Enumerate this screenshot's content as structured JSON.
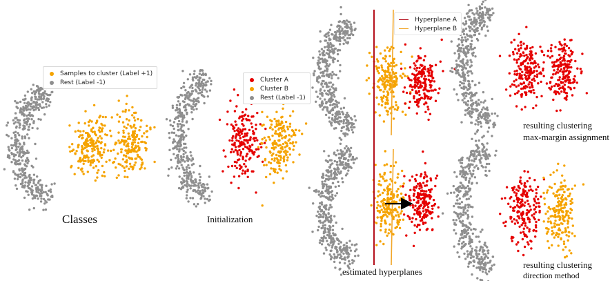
{
  "colors": {
    "rest": "#8f8f8f",
    "cluster_target": "#f5a300",
    "cluster_a": "#e50000",
    "cluster_b": "#f5a300",
    "hyperplane_a": "#b40f1b",
    "hyperplane_b": "#f2a72a",
    "arrow": "#000000"
  },
  "legend_classes": {
    "items": [
      {
        "label": "Samples to cluster (Label +1)",
        "color": "#f5a300"
      },
      {
        "label": "Rest (Label -1)",
        "color": "#8f8f8f"
      }
    ]
  },
  "legend_init": {
    "items": [
      {
        "label": "Cluster A",
        "color": "#e50000"
      },
      {
        "label": "Cluster B",
        "color": "#f5a300"
      },
      {
        "label": "Rest (Label -1)",
        "color": "#8f8f8f"
      }
    ]
  },
  "legend_hyperplanes": {
    "items": [
      {
        "label": "Hyperplane A",
        "color": "#b40f1b"
      },
      {
        "label": "Hyperplane B",
        "color": "#f2a72a"
      }
    ]
  },
  "captions": {
    "classes": "Classes",
    "initialization": "Initialization",
    "estimated": "estimated hyperplanes",
    "maxmargin_line1": "resulting clustering",
    "maxmargin_line2": "max-margin assignment",
    "direction_line1": "resulting clustering",
    "direction_line2": "direction method"
  }
}
